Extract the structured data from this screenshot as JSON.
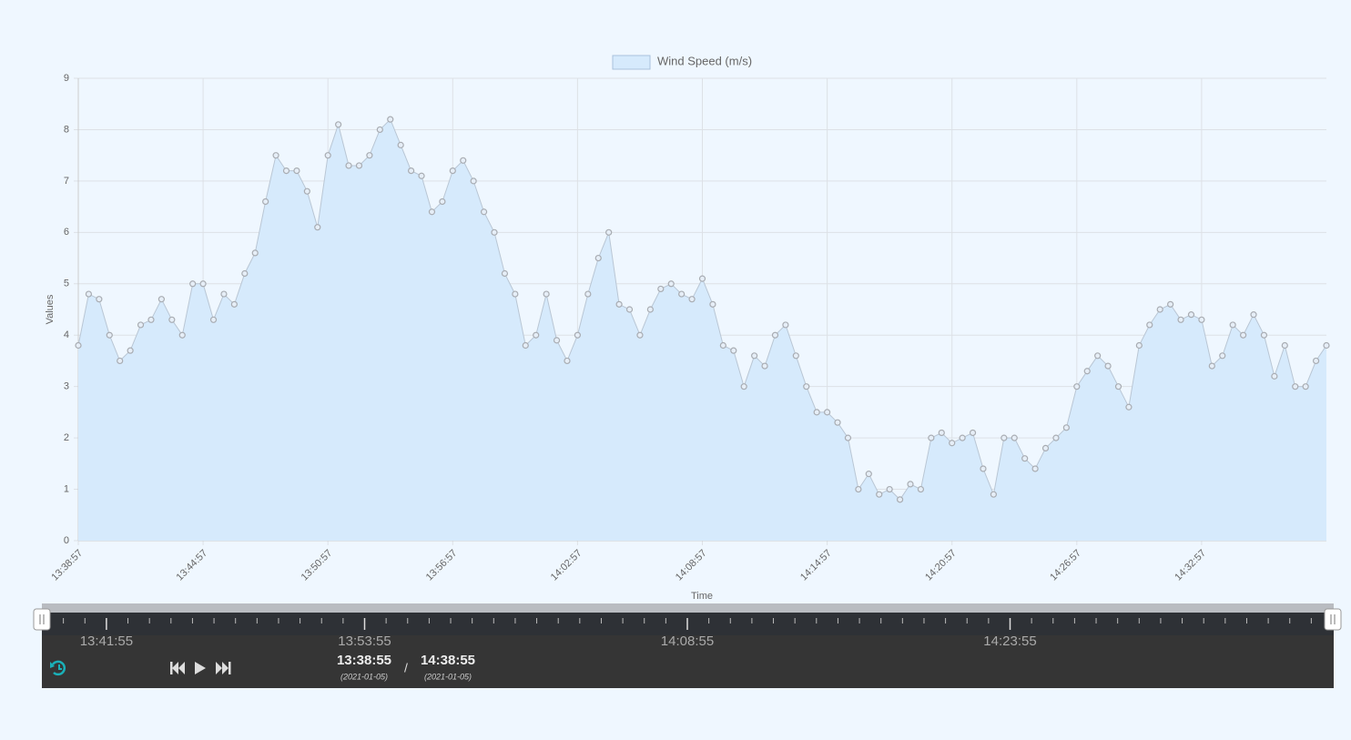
{
  "chart_data": {
    "type": "area",
    "legend": "Wind Speed (m/s)",
    "x_label": "Time",
    "y_label": "Values",
    "color": "#d6eafc",
    "point_color": "#a8acb2",
    "grid": true,
    "x": [
      "13:38:57",
      "13:39:27",
      "13:39:57",
      "13:40:27",
      "13:40:57",
      "13:41:27",
      "13:41:57",
      "13:42:27",
      "13:42:57",
      "13:43:27",
      "13:43:57",
      "13:44:27",
      "13:44:57",
      "13:45:27",
      "13:45:57",
      "13:46:27",
      "13:46:57",
      "13:47:27",
      "13:47:57",
      "13:48:27",
      "13:48:57",
      "13:49:27",
      "13:49:57",
      "13:50:27",
      "13:50:57",
      "13:51:27",
      "13:51:57",
      "13:52:27",
      "13:52:57",
      "13:53:27",
      "13:53:57",
      "13:54:27",
      "13:54:57",
      "13:55:27",
      "13:55:57",
      "13:56:27",
      "13:56:57",
      "13:57:27",
      "13:57:57",
      "13:58:27",
      "13:58:57",
      "13:59:27",
      "13:59:57",
      "14:00:27",
      "14:00:57",
      "14:01:27",
      "14:01:57",
      "14:02:27",
      "14:02:57",
      "14:03:27",
      "14:03:57",
      "14:04:27",
      "14:04:57",
      "14:05:27",
      "14:05:57",
      "14:06:27",
      "14:06:57",
      "14:07:27",
      "14:07:57",
      "14:08:27",
      "14:08:57",
      "14:09:27",
      "14:09:57",
      "14:10:27",
      "14:10:57",
      "14:11:27",
      "14:11:57",
      "14:12:27",
      "14:12:57",
      "14:13:27",
      "14:13:57",
      "14:14:27",
      "14:14:57",
      "14:15:27",
      "14:15:57",
      "14:16:27",
      "14:16:57",
      "14:17:27",
      "14:17:57",
      "14:18:27",
      "14:18:57",
      "14:19:27",
      "14:19:57",
      "14:20:27",
      "14:20:57",
      "14:21:27",
      "14:21:57",
      "14:22:27",
      "14:22:57",
      "14:23:27",
      "14:23:57",
      "14:24:27",
      "14:24:57",
      "14:25:27",
      "14:25:57",
      "14:26:27",
      "14:26:57",
      "14:27:27",
      "14:27:57",
      "14:28:27",
      "14:28:57",
      "14:29:27",
      "14:29:57",
      "14:30:27",
      "14:30:57",
      "14:31:27",
      "14:31:57",
      "14:32:27",
      "14:32:57",
      "14:33:27",
      "14:33:57",
      "14:34:27",
      "14:34:57",
      "14:35:27",
      "14:35:57",
      "14:36:27",
      "14:36:57",
      "14:37:27",
      "14:37:57",
      "14:38:27",
      "14:38:57"
    ],
    "values": [
      3.8,
      4.8,
      4.7,
      4.0,
      3.5,
      3.7,
      4.2,
      4.3,
      4.7,
      4.3,
      4.0,
      5.0,
      5.0,
      4.3,
      4.8,
      4.6,
      5.2,
      5.6,
      6.6,
      7.5,
      7.2,
      7.2,
      6.8,
      6.1,
      7.5,
      8.1,
      7.3,
      7.3,
      7.5,
      8.0,
      8.2,
      7.7,
      7.2,
      7.1,
      6.4,
      6.6,
      7.2,
      7.4,
      7.0,
      6.4,
      6.0,
      5.2,
      4.8,
      3.8,
      4.0,
      4.8,
      3.9,
      3.5,
      4.0,
      4.8,
      5.5,
      6.0,
      4.6,
      4.5,
      4.0,
      4.5,
      4.9,
      5.0,
      4.8,
      4.7,
      5.1,
      4.6,
      3.8,
      3.7,
      3.0,
      3.6,
      3.4,
      4.0,
      4.2,
      3.6,
      3.0,
      2.5,
      2.5,
      2.3,
      2.0,
      1.0,
      1.3,
      0.9,
      1.0,
      0.8,
      1.1,
      1.0,
      2.0,
      2.1,
      1.9,
      2.0,
      2.1,
      1.4,
      0.9,
      2.0,
      2.0,
      1.6,
      1.4,
      1.8,
      2.0,
      2.2,
      3.0,
      3.3,
      3.6,
      3.4,
      3.0,
      2.6,
      3.8,
      4.2,
      4.5,
      4.6,
      4.3,
      4.4,
      4.3,
      3.4,
      3.6,
      4.2,
      4.0,
      4.4,
      4.0,
      3.2,
      3.8,
      3.0,
      3.0,
      3.5,
      3.8
    ],
    "xlim": [
      "13:38:57",
      "14:38:57"
    ],
    "xticks": [
      "13:38:57",
      "13:44:57",
      "13:50:57",
      "13:56:57",
      "14:02:57",
      "14:08:57",
      "14:14:57",
      "14:20:57",
      "14:26:57",
      "14:32:57"
    ],
    "ylim": [
      0,
      9
    ],
    "yticks": [
      0,
      1,
      2,
      3,
      4,
      5,
      6,
      7,
      8,
      9
    ]
  },
  "player": {
    "start": "13:38:55",
    "start_date": "(2021-01-05)",
    "separator": "/",
    "end": "14:38:55",
    "end_date": "(2021-01-05)",
    "timeline_labels": [
      "13:41:55",
      "13:53:55",
      "14:08:55",
      "14:23:55"
    ]
  }
}
